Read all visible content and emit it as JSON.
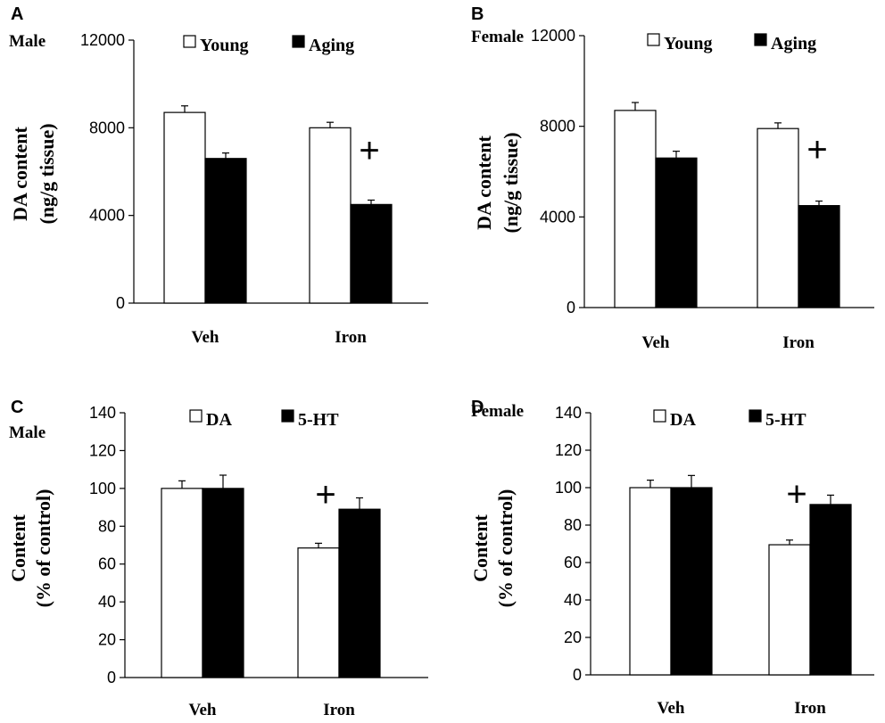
{
  "chart_data": [
    {
      "panel": "A",
      "sex": "Male",
      "type": "bar",
      "categories": [
        "Veh",
        "Iron"
      ],
      "series": [
        {
          "name": "Young",
          "values": [
            8700,
            8000
          ],
          "errors": [
            300,
            250
          ],
          "color": "#ffffff"
        },
        {
          "name": "Aging",
          "values": [
            6600,
            4500
          ],
          "errors": [
            250,
            200
          ],
          "color": "#000000"
        }
      ],
      "ylabel_lines": [
        "DA content",
        "(ng/g tissue)"
      ],
      "ylim": [
        0,
        12000
      ],
      "yticks": [
        "0",
        "4000",
        "8000",
        "12000"
      ],
      "annotations": [
        {
          "text": "+",
          "category": "Iron",
          "value": 7000
        }
      ]
    },
    {
      "panel": "B",
      "sex": "Female",
      "type": "bar",
      "categories": [
        "Veh",
        "Iron"
      ],
      "series": [
        {
          "name": "Young",
          "values": [
            8700,
            7900
          ],
          "errors": [
            350,
            250
          ],
          "color": "#ffffff"
        },
        {
          "name": "Aging",
          "values": [
            6600,
            4500
          ],
          "errors": [
            300,
            200
          ],
          "color": "#000000"
        }
      ],
      "ylabel_lines": [
        "DA content",
        "(ng/g tissue)"
      ],
      "ylim": [
        0,
        12000
      ],
      "yticks": [
        "0",
        "4000",
        "8000",
        "12000"
      ],
      "annotations": [
        {
          "text": "+",
          "category": "Iron",
          "value": 7000
        }
      ]
    },
    {
      "panel": "C",
      "sex": "Male",
      "type": "bar",
      "categories": [
        "Veh",
        "Iron"
      ],
      "series": [
        {
          "name": "DA",
          "values": [
            100,
            68.5
          ],
          "errors": [
            4,
            2.5
          ],
          "color": "#ffffff"
        },
        {
          "name": "5-HT",
          "values": [
            100,
            89
          ],
          "errors": [
            7,
            6
          ],
          "color": "#000000"
        }
      ],
      "ylabel_lines": [
        "Content",
        "(% of control)"
      ],
      "ylim": [
        0,
        140
      ],
      "yticks": [
        "0",
        "20",
        "40",
        "60",
        "80",
        "100",
        "120",
        "140"
      ],
      "annotations": [
        {
          "text": "+",
          "category": "Iron",
          "value": 97
        }
      ]
    },
    {
      "panel": "D",
      "sex": "Female",
      "type": "bar",
      "categories": [
        "Veh",
        "Iron"
      ],
      "series": [
        {
          "name": "DA",
          "values": [
            100,
            69.5
          ],
          "errors": [
            4,
            2.5
          ],
          "color": "#ffffff"
        },
        {
          "name": "5-HT",
          "values": [
            100,
            91
          ],
          "errors": [
            6.5,
            5
          ],
          "color": "#000000"
        }
      ],
      "ylabel_lines": [
        "Content",
        "(% of control)"
      ],
      "ylim": [
        0,
        140
      ],
      "yticks": [
        "0",
        "20",
        "40",
        "60",
        "80",
        "100",
        "120",
        "140"
      ],
      "annotations": [
        {
          "text": "+",
          "category": "Iron",
          "value": 97
        }
      ]
    }
  ]
}
